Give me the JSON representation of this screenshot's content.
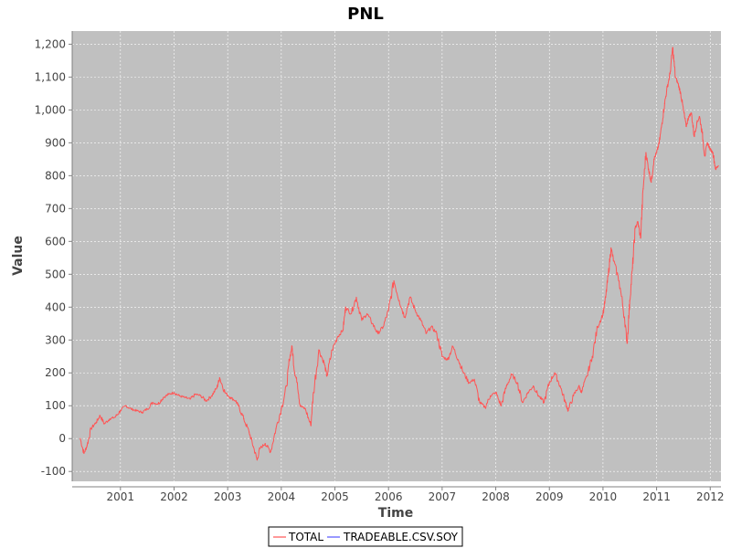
{
  "chart_data": {
    "type": "line",
    "title": "PNL",
    "xlabel": "Time",
    "ylabel": "Value",
    "x_ticks": [
      "2001",
      "2002",
      "2003",
      "2004",
      "2005",
      "2006",
      "2007",
      "2008",
      "2009",
      "2010",
      "2011",
      "2012"
    ],
    "y_ticks": [
      "-100",
      "0",
      "100",
      "200",
      "300",
      "400",
      "500",
      "600",
      "700",
      "800",
      "900",
      "1,000",
      "1,100",
      "1,200"
    ],
    "xlim": [
      2000.1,
      2012.2
    ],
    "ylim": [
      -130,
      1240
    ],
    "grid": true,
    "legend_position": "bottom-center",
    "plot_background": "#c0c0c0",
    "series": [
      {
        "name": "TOTAL",
        "color": "#ff5555",
        "points": [
          [
            2000.25,
            0
          ],
          [
            2000.32,
            -45
          ],
          [
            2000.38,
            -20
          ],
          [
            2000.45,
            30
          ],
          [
            2000.55,
            50
          ],
          [
            2000.62,
            70
          ],
          [
            2000.7,
            45
          ],
          [
            2000.8,
            60
          ],
          [
            2000.9,
            65
          ],
          [
            2001.0,
            85
          ],
          [
            2001.1,
            100
          ],
          [
            2001.2,
            90
          ],
          [
            2001.3,
            85
          ],
          [
            2001.4,
            80
          ],
          [
            2001.5,
            90
          ],
          [
            2001.6,
            110
          ],
          [
            2001.7,
            105
          ],
          [
            2001.8,
            125
          ],
          [
            2001.9,
            135
          ],
          [
            2002.0,
            140
          ],
          [
            2002.1,
            130
          ],
          [
            2002.2,
            125
          ],
          [
            2002.3,
            120
          ],
          [
            2002.4,
            135
          ],
          [
            2002.5,
            130
          ],
          [
            2002.6,
            115
          ],
          [
            2002.7,
            130
          ],
          [
            2002.8,
            155
          ],
          [
            2002.85,
            185
          ],
          [
            2002.95,
            140
          ],
          [
            2003.05,
            125
          ],
          [
            2003.15,
            115
          ],
          [
            2003.2,
            100
          ],
          [
            2003.3,
            60
          ],
          [
            2003.4,
            20
          ],
          [
            2003.48,
            -25
          ],
          [
            2003.55,
            -65
          ],
          [
            2003.6,
            -30
          ],
          [
            2003.7,
            -15
          ],
          [
            2003.8,
            -40
          ],
          [
            2003.9,
            30
          ],
          [
            2004.0,
            90
          ],
          [
            2004.1,
            160
          ],
          [
            2004.15,
            240
          ],
          [
            2004.2,
            280
          ],
          [
            2004.25,
            200
          ],
          [
            2004.3,
            170
          ],
          [
            2004.35,
            100
          ],
          [
            2004.45,
            90
          ],
          [
            2004.55,
            40
          ],
          [
            2004.6,
            140
          ],
          [
            2004.7,
            270
          ],
          [
            2004.8,
            230
          ],
          [
            2004.85,
            190
          ],
          [
            2004.95,
            270
          ],
          [
            2005.05,
            310
          ],
          [
            2005.15,
            330
          ],
          [
            2005.2,
            400
          ],
          [
            2005.3,
            380
          ],
          [
            2005.4,
            430
          ],
          [
            2005.5,
            360
          ],
          [
            2005.6,
            380
          ],
          [
            2005.7,
            350
          ],
          [
            2005.8,
            320
          ],
          [
            2005.9,
            340
          ],
          [
            2006.0,
            390
          ],
          [
            2006.1,
            480
          ],
          [
            2006.2,
            420
          ],
          [
            2006.3,
            370
          ],
          [
            2006.4,
            430
          ],
          [
            2006.5,
            390
          ],
          [
            2006.6,
            360
          ],
          [
            2006.7,
            320
          ],
          [
            2006.8,
            340
          ],
          [
            2006.9,
            320
          ],
          [
            2007.0,
            250
          ],
          [
            2007.1,
            240
          ],
          [
            2007.2,
            280
          ],
          [
            2007.3,
            240
          ],
          [
            2007.4,
            200
          ],
          [
            2007.5,
            170
          ],
          [
            2007.6,
            180
          ],
          [
            2007.7,
            110
          ],
          [
            2007.8,
            95
          ],
          [
            2007.9,
            130
          ],
          [
            2008.0,
            140
          ],
          [
            2008.1,
            100
          ],
          [
            2008.2,
            160
          ],
          [
            2008.3,
            195
          ],
          [
            2008.4,
            170
          ],
          [
            2008.5,
            110
          ],
          [
            2008.6,
            140
          ],
          [
            2008.7,
            160
          ],
          [
            2008.8,
            130
          ],
          [
            2008.9,
            110
          ],
          [
            2009.0,
            170
          ],
          [
            2009.1,
            200
          ],
          [
            2009.2,
            160
          ],
          [
            2009.3,
            110
          ],
          [
            2009.35,
            85
          ],
          [
            2009.45,
            130
          ],
          [
            2009.55,
            160
          ],
          [
            2009.6,
            140
          ],
          [
            2009.7,
            190
          ],
          [
            2009.8,
            250
          ],
          [
            2009.9,
            340
          ],
          [
            2010.0,
            380
          ],
          [
            2010.05,
            430
          ],
          [
            2010.1,
            500
          ],
          [
            2010.15,
            580
          ],
          [
            2010.2,
            540
          ],
          [
            2010.3,
            480
          ],
          [
            2010.4,
            370
          ],
          [
            2010.45,
            290
          ],
          [
            2010.5,
            420
          ],
          [
            2010.55,
            520
          ],
          [
            2010.6,
            640
          ],
          [
            2010.65,
            660
          ],
          [
            2010.7,
            610
          ],
          [
            2010.75,
            760
          ],
          [
            2010.8,
            870
          ],
          [
            2010.85,
            820
          ],
          [
            2010.9,
            780
          ],
          [
            2010.95,
            850
          ],
          [
            2011.0,
            870
          ],
          [
            2011.05,
            900
          ],
          [
            2011.1,
            960
          ],
          [
            2011.15,
            1020
          ],
          [
            2011.2,
            1070
          ],
          [
            2011.25,
            1110
          ],
          [
            2011.3,
            1190
          ],
          [
            2011.35,
            1100
          ],
          [
            2011.4,
            1080
          ],
          [
            2011.45,
            1050
          ],
          [
            2011.5,
            1000
          ],
          [
            2011.55,
            950
          ],
          [
            2011.6,
            980
          ],
          [
            2011.65,
            990
          ],
          [
            2011.7,
            920
          ],
          [
            2011.75,
            960
          ],
          [
            2011.8,
            980
          ],
          [
            2011.85,
            930
          ],
          [
            2011.9,
            860
          ],
          [
            2011.95,
            900
          ],
          [
            2012.0,
            880
          ],
          [
            2012.05,
            870
          ],
          [
            2012.1,
            820
          ],
          [
            2012.15,
            830
          ]
        ]
      },
      {
        "name": "TRADEABLE.CSV.SOY",
        "color": "#5555ff",
        "points": []
      }
    ]
  }
}
